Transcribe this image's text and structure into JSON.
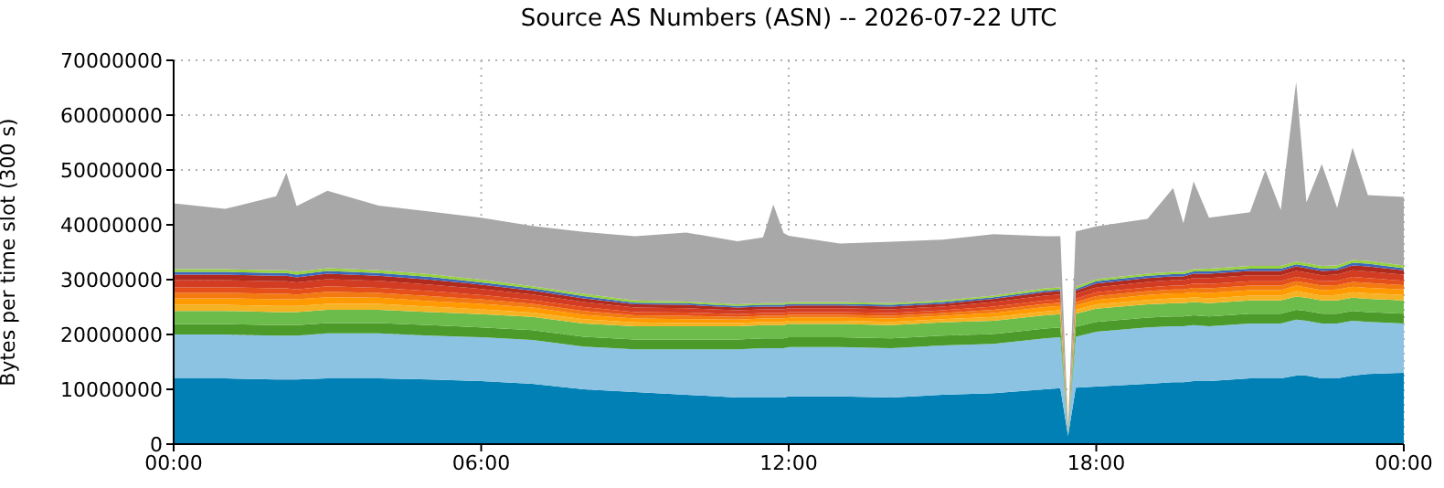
{
  "chart_data": {
    "type": "area",
    "stacked": true,
    "title": "Source AS Numbers (ASN) -- 2026-07-22 UTC",
    "ylabel": "Bytes per time slot (300 s)",
    "x": [
      0,
      1,
      2,
      2.2,
      2.4,
      3,
      4,
      5,
      6,
      7,
      8,
      9,
      10,
      11,
      11.5,
      11.7,
      11.9,
      12,
      13,
      14,
      15,
      16,
      17,
      17.3,
      17.45,
      17.6,
      18,
      19,
      19.5,
      19.7,
      19.9,
      20.2,
      21,
      21.3,
      21.6,
      21.9,
      22.1,
      22.4,
      22.7,
      23,
      23.3,
      24
    ],
    "xlim": [
      0,
      24
    ],
    "xticks": [
      {
        "value": 0,
        "label": "00:00"
      },
      {
        "value": 6,
        "label": "06:00"
      },
      {
        "value": 12,
        "label": "12:00"
      },
      {
        "value": 18,
        "label": "18:00"
      },
      {
        "value": 24,
        "label": "00:00"
      }
    ],
    "ylim": [
      0,
      70000000
    ],
    "yticks": [
      0,
      10000000,
      20000000,
      30000000,
      40000000,
      50000000,
      60000000,
      70000000
    ],
    "grid": true,
    "series": [
      {
        "color": "#0080b4",
        "values": [
          12000000,
          12000000,
          11800000,
          11800000,
          11800000,
          12000000,
          12000000,
          11800000,
          11500000,
          11000000,
          10000000,
          9500000,
          9000000,
          8500000,
          8500000,
          8500000,
          8500000,
          8700000,
          8700000,
          8500000,
          9000000,
          9300000,
          10000000,
          10200000,
          1500000,
          10300000,
          10500000,
          11000000,
          11300000,
          11300000,
          11500000,
          11500000,
          12000000,
          12000000,
          12000000,
          12500000,
          12500000,
          12000000,
          12000000,
          12500000,
          12800000,
          13000000
        ]
      },
      {
        "color": "#8cc3e3",
        "values": [
          8000000,
          8000000,
          8000000,
          8000000,
          8000000,
          8200000,
          8200000,
          8000000,
          8000000,
          8000000,
          7800000,
          7800000,
          8300000,
          8800000,
          9000000,
          9000000,
          9000000,
          9000000,
          9000000,
          9000000,
          9000000,
          9000000,
          9300000,
          9300000,
          500000,
          9300000,
          10000000,
          10300000,
          10200000,
          10200000,
          10200000,
          10000000,
          10000000,
          10000000,
          10000000,
          10200000,
          10000000,
          10000000,
          10000000,
          10000000,
          9500000,
          9000000
        ]
      },
      {
        "color": "#4c9a2a",
        "values": [
          1900000,
          1900000,
          1900000,
          1900000,
          1900000,
          1900000,
          1900000,
          1900000,
          1800000,
          1800000,
          1800000,
          1800000,
          1800000,
          1800000,
          1800000,
          1800000,
          1800000,
          1800000,
          1800000,
          1800000,
          1800000,
          1800000,
          1800000,
          1800000,
          200000,
          1800000,
          1800000,
          1800000,
          1800000,
          1800000,
          1800000,
          1800000,
          1800000,
          1800000,
          1800000,
          1800000,
          1800000,
          1800000,
          1800000,
          1800000,
          1800000,
          1800000
        ]
      },
      {
        "color": "#6cbc4c",
        "values": [
          2400000,
          2400000,
          2400000,
          2400000,
          2400000,
          2400000,
          2400000,
          2400000,
          2400000,
          2400000,
          2400000,
          2400000,
          2400000,
          2400000,
          2400000,
          2400000,
          2400000,
          2400000,
          2400000,
          2400000,
          2400000,
          2400000,
          2400000,
          2400000,
          200000,
          2400000,
          2400000,
          2400000,
          2400000,
          2400000,
          2400000,
          2400000,
          2400000,
          2400000,
          2400000,
          2400000,
          2400000,
          2400000,
          2400000,
          2400000,
          2400000,
          2400000
        ]
      },
      {
        "color": "#f5b324",
        "values": [
          1100000,
          1100000,
          1100000,
          1100000,
          1100000,
          1100000,
          1100000,
          1000000,
          900000,
          800000,
          800000,
          700000,
          600000,
          600000,
          600000,
          600000,
          600000,
          600000,
          600000,
          600000,
          600000,
          700000,
          700000,
          700000,
          100000,
          700000,
          800000,
          800000,
          900000,
          900000,
          900000,
          900000,
          900000,
          900000,
          900000,
          1000000,
          900000,
          900000,
          1000000,
          1000000,
          1000000,
          1000000
        ]
      },
      {
        "color": "#ff9a00",
        "values": [
          1200000,
          1200000,
          1200000,
          1200000,
          1200000,
          1200000,
          1100000,
          1000000,
          1000000,
          900000,
          800000,
          700000,
          700000,
          600000,
          600000,
          600000,
          600000,
          600000,
          600000,
          600000,
          600000,
          700000,
          800000,
          800000,
          100000,
          800000,
          800000,
          900000,
          900000,
          900000,
          900000,
          1000000,
          1000000,
          1000000,
          1000000,
          1000000,
          1000000,
          1000000,
          1000000,
          1000000,
          1000000,
          1000000
        ]
      },
      {
        "color": "#f27a10",
        "values": [
          1000000,
          1000000,
          1000000,
          1000000,
          900000,
          1000000,
          900000,
          900000,
          800000,
          700000,
          700000,
          600000,
          600000,
          500000,
          500000,
          500000,
          500000,
          500000,
          500000,
          500000,
          500000,
          600000,
          600000,
          600000,
          100000,
          600000,
          700000,
          700000,
          700000,
          700000,
          800000,
          800000,
          800000,
          800000,
          800000,
          800000,
          800000,
          800000,
          800000,
          900000,
          900000,
          800000
        ]
      },
      {
        "color": "#e5501a",
        "values": [
          1000000,
          1000000,
          1000000,
          1000000,
          900000,
          1000000,
          900000,
          900000,
          800000,
          700000,
          700000,
          600000,
          600000,
          500000,
          500000,
          500000,
          500000,
          500000,
          500000,
          500000,
          500000,
          600000,
          600000,
          600000,
          100000,
          600000,
          700000,
          700000,
          700000,
          700000,
          800000,
          800000,
          800000,
          800000,
          800000,
          800000,
          800000,
          800000,
          800000,
          900000,
          900000,
          800000
        ]
      },
      {
        "color": "#d23c22",
        "values": [
          1300000,
          1300000,
          1300000,
          1300000,
          1300000,
          1300000,
          1300000,
          1200000,
          1100000,
          1000000,
          900000,
          800000,
          800000,
          700000,
          700000,
          700000,
          700000,
          700000,
          700000,
          700000,
          700000,
          800000,
          900000,
          900000,
          100000,
          900000,
          900000,
          1000000,
          1000000,
          1000000,
          1000000,
          1100000,
          1100000,
          1100000,
          1100000,
          1100000,
          1100000,
          1100000,
          1100000,
          1200000,
          1200000,
          1100000
        ]
      },
      {
        "color": "#b02a1e",
        "values": [
          1000000,
          1000000,
          1000000,
          1000000,
          900000,
          1000000,
          900000,
          900000,
          800000,
          700000,
          700000,
          600000,
          600000,
          500000,
          500000,
          500000,
          500000,
          500000,
          500000,
          500000,
          500000,
          600000,
          600000,
          600000,
          100000,
          600000,
          700000,
          700000,
          700000,
          700000,
          800000,
          800000,
          800000,
          800000,
          800000,
          800000,
          800000,
          800000,
          800000,
          900000,
          900000,
          800000
        ]
      },
      {
        "color": "#3c68bc",
        "values": [
          500000,
          500000,
          500000,
          500000,
          500000,
          500000,
          500000,
          500000,
          400000,
          400000,
          400000,
          300000,
          300000,
          300000,
          300000,
          300000,
          300000,
          300000,
          300000,
          300000,
          300000,
          300000,
          300000,
          300000,
          100000,
          300000,
          400000,
          400000,
          400000,
          400000,
          400000,
          400000,
          400000,
          400000,
          400000,
          400000,
          400000,
          400000,
          400000,
          500000,
          500000,
          400000
        ]
      },
      {
        "color": "#96d23c",
        "values": [
          500000,
          500000,
          500000,
          500000,
          500000,
          500000,
          500000,
          500000,
          500000,
          400000,
          400000,
          400000,
          300000,
          300000,
          300000,
          300000,
          300000,
          300000,
          300000,
          300000,
          300000,
          300000,
          400000,
          400000,
          100000,
          400000,
          400000,
          400000,
          400000,
          400000,
          400000,
          500000,
          500000,
          500000,
          500000,
          500000,
          500000,
          500000,
          500000,
          500000,
          500000,
          500000
        ]
      },
      {
        "color": "#a8a8a8",
        "values": [
          12000000,
          11000000,
          13500000,
          17800000,
          12000000,
          14100000,
          11800000,
          11400000,
          11300000,
          11000000,
          11300000,
          11700000,
          12600000,
          11500000,
          12000000,
          18000000,
          12800000,
          12100000,
          10700000,
          11200000,
          11100000,
          11200000,
          9500000,
          9300000,
          100000,
          10100000,
          9600000,
          10000000,
          15300000,
          8900000,
          16000000,
          9300000,
          9800000,
          17500000,
          10200000,
          32800000,
          11100000,
          18600000,
          10500000,
          20500000,
          12000000,
          12500000
        ]
      }
    ]
  }
}
